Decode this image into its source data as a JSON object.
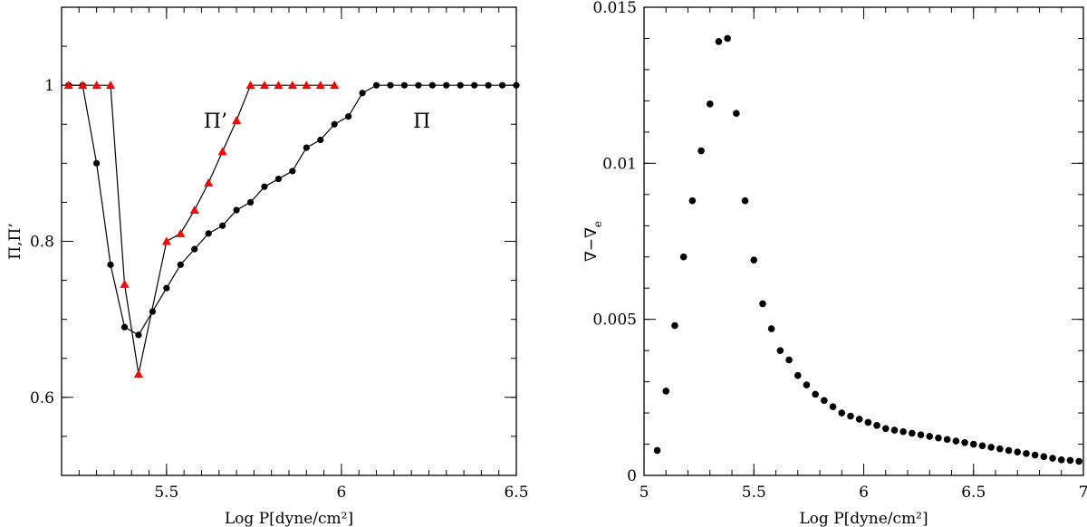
{
  "chart_data": [
    {
      "type": "line",
      "xlabel": "Log P[dyne/cm²]",
      "ylabel": "Π,Π’",
      "xlim": [
        5.2,
        6.5
      ],
      "ylim": [
        0.5,
        1.1
      ],
      "xticks_major": [
        5.5,
        6,
        6.5
      ],
      "xtick_labels": [
        "5.5",
        "6",
        "6.5"
      ],
      "yticks_major": [
        0.6,
        0.8,
        1
      ],
      "ytick_labels": [
        "0.6",
        "0.8",
        "1"
      ],
      "annotations": [
        {
          "text": "Π’",
          "x": 5.64,
          "y": 0.955
        },
        {
          "text": "Π",
          "x": 6.23,
          "y": 0.955
        }
      ],
      "series": [
        {
          "name": "Π",
          "marker": "circle",
          "color": "#000000",
          "x": [
            5.22,
            5.26,
            5.3,
            5.34,
            5.38,
            5.42,
            5.46,
            5.5,
            5.54,
            5.58,
            5.62,
            5.66,
            5.7,
            5.74,
            5.78,
            5.82,
            5.86,
            5.9,
            5.94,
            5.98,
            6.02,
            6.06,
            6.1,
            6.14,
            6.18,
            6.22,
            6.26,
            6.3,
            6.34,
            6.38,
            6.42,
            6.46,
            6.5
          ],
          "y": [
            1.0,
            1.0,
            0.9,
            0.77,
            0.69,
            0.68,
            0.71,
            0.74,
            0.77,
            0.79,
            0.81,
            0.82,
            0.84,
            0.85,
            0.87,
            0.88,
            0.89,
            0.92,
            0.93,
            0.95,
            0.96,
            0.99,
            1.0,
            1.0,
            1.0,
            1.0,
            1.0,
            1.0,
            1.0,
            1.0,
            1.0,
            1.0,
            1.0
          ]
        },
        {
          "name": "Π’",
          "marker": "triangle",
          "color": "#ff0000",
          "x": [
            5.22,
            5.26,
            5.3,
            5.34,
            5.38,
            5.42,
            5.5,
            5.54,
            5.58,
            5.62,
            5.66,
            5.7,
            5.74,
            5.78,
            5.82,
            5.86,
            5.9,
            5.94,
            5.98
          ],
          "y": [
            1.0,
            1.0,
            1.0,
            1.0,
            0.745,
            0.63,
            0.8,
            0.81,
            0.84,
            0.875,
            0.915,
            0.955,
            1.0,
            1.0,
            1.0,
            1.0,
            1.0,
            1.0,
            1.0
          ]
        }
      ]
    },
    {
      "type": "scatter",
      "xlabel": "Log P[dyne/cm²]",
      "ylabel": "∇−∇e",
      "ylabel_main": "∇−∇",
      "ylabel_sub": "e",
      "xlim": [
        5.0,
        7.0
      ],
      "ylim": [
        0,
        0.015
      ],
      "xticks_major": [
        5,
        5.5,
        6,
        6.5,
        7
      ],
      "xtick_labels": [
        "5",
        "5.5",
        "6",
        "6.5",
        "7"
      ],
      "yticks_major": [
        0,
        0.005,
        0.01,
        0.015
      ],
      "ytick_labels": [
        "0",
        "0.005",
        "0.01",
        "0.015"
      ],
      "series": [
        {
          "marker": "circle",
          "color": "#000000",
          "x": [
            5.06,
            5.1,
            5.14,
            5.18,
            5.22,
            5.26,
            5.3,
            5.34,
            5.38,
            5.42,
            5.46,
            5.5,
            5.54,
            5.58,
            5.62,
            5.66,
            5.7,
            5.74,
            5.78,
            5.82,
            5.86,
            5.9,
            5.94,
            5.98,
            6.02,
            6.06,
            6.1,
            6.14,
            6.18,
            6.22,
            6.26,
            6.3,
            6.34,
            6.38,
            6.42,
            6.46,
            6.5,
            6.54,
            6.58,
            6.62,
            6.66,
            6.7,
            6.74,
            6.78,
            6.82,
            6.86,
            6.9,
            6.94,
            6.98
          ],
          "y": [
            0.0008,
            0.0027,
            0.0048,
            0.007,
            0.0088,
            0.0104,
            0.0119,
            0.0139,
            0.014,
            0.0116,
            0.0088,
            0.0069,
            0.0055,
            0.0047,
            0.004,
            0.0037,
            0.0032,
            0.0029,
            0.0026,
            0.0024,
            0.0022,
            0.002,
            0.0019,
            0.0018,
            0.0017,
            0.0016,
            0.0015,
            0.00145,
            0.0014,
            0.00135,
            0.0013,
            0.00125,
            0.0012,
            0.00115,
            0.0011,
            0.00105,
            0.001,
            0.00095,
            0.0009,
            0.00085,
            0.0008,
            0.00075,
            0.0007,
            0.00065,
            0.0006,
            0.00055,
            0.0005,
            0.00048,
            0.00045
          ]
        }
      ]
    }
  ]
}
